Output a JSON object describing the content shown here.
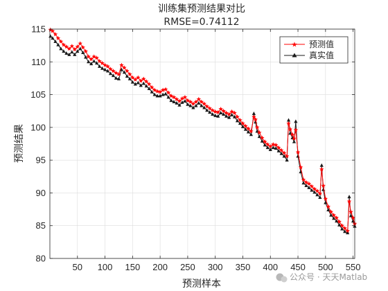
{
  "chart_data": {
    "type": "line",
    "title": "训练集预测结果对比",
    "subtitle": "RMSE=0.74112",
    "xlabel": "预测样本",
    "ylabel": "预测结果",
    "xlim": [
      0,
      553
    ],
    "ylim": [
      80,
      115
    ],
    "xticks": [
      50,
      100,
      150,
      200,
      250,
      300,
      350,
      400,
      450,
      500,
      550
    ],
    "yticks": [
      80,
      85,
      90,
      95,
      100,
      105,
      110,
      115
    ],
    "grid": true,
    "legend_position": "top-right",
    "series": [
      {
        "name": "预测值",
        "color": "#ff0000",
        "marker": "star",
        "x": [
          1,
          5,
          10,
          15,
          20,
          25,
          30,
          35,
          40,
          45,
          50,
          55,
          60,
          65,
          70,
          75,
          80,
          85,
          90,
          95,
          100,
          105,
          110,
          115,
          120,
          125,
          130,
          135,
          140,
          145,
          150,
          155,
          160,
          165,
          170,
          175,
          180,
          185,
          190,
          195,
          200,
          205,
          210,
          215,
          220,
          225,
          230,
          235,
          240,
          245,
          250,
          255,
          260,
          265,
          270,
          275,
          280,
          285,
          290,
          295,
          300,
          305,
          310,
          315,
          320,
          325,
          330,
          335,
          340,
          345,
          350,
          355,
          360,
          365,
          370,
          373,
          376,
          380,
          385,
          390,
          395,
          400,
          405,
          410,
          415,
          420,
          425,
          430,
          433,
          436,
          440,
          443,
          446,
          450,
          455,
          460,
          465,
          470,
          475,
          480,
          485,
          490,
          493,
          496,
          500,
          505,
          510,
          515,
          520,
          525,
          530,
          535,
          540,
          543,
          546,
          550,
          553
        ],
        "y": [
          114.9,
          114.7,
          114.2,
          113.6,
          113.1,
          112.6,
          112.3,
          112.0,
          112.4,
          111.9,
          112.3,
          112.8,
          112.2,
          111.6,
          110.8,
          110.4,
          110.8,
          110.6,
          110.1,
          109.8,
          109.5,
          109.3,
          108.9,
          108.6,
          108.3,
          108.1,
          109.5,
          109.1,
          108.6,
          108.1,
          107.6,
          107.3,
          107.6,
          107.1,
          107.4,
          107.0,
          106.6,
          106.1,
          105.7,
          105.5,
          105.4,
          105.7,
          105.8,
          105.3,
          104.8,
          104.6,
          104.3,
          104.0,
          104.4,
          104.6,
          104.1,
          103.9,
          103.6,
          103.9,
          104.3,
          103.9,
          103.6,
          103.2,
          102.9,
          102.6,
          102.4,
          102.3,
          102.8,
          102.5,
          102.2,
          102.0,
          102.4,
          102.2,
          101.6,
          101.1,
          100.6,
          100.2,
          99.8,
          99.4,
          101.6,
          101.2,
          100.0,
          99.2,
          98.4,
          97.8,
          97.4,
          97.1,
          97.4,
          97.3,
          96.9,
          96.5,
          96.1,
          95.6,
          100.6,
          99.7,
          98.9,
          98.3,
          99.6,
          96.2,
          93.9,
          92.0,
          91.6,
          91.4,
          91.0,
          90.6,
          90.3,
          89.9,
          93.6,
          91.1,
          89.1,
          87.9,
          87.1,
          86.6,
          86.2,
          85.6,
          85.0,
          84.6,
          84.2,
          88.7,
          87.1,
          86.2,
          85.3
        ]
      },
      {
        "name": "真实值",
        "color": "#1a1a1a",
        "marker": "triangle",
        "x": [
          1,
          5,
          10,
          15,
          20,
          25,
          30,
          35,
          40,
          45,
          50,
          55,
          60,
          65,
          70,
          75,
          80,
          85,
          90,
          95,
          100,
          105,
          110,
          115,
          120,
          125,
          130,
          135,
          140,
          145,
          150,
          155,
          160,
          165,
          170,
          175,
          180,
          185,
          190,
          195,
          200,
          205,
          210,
          215,
          220,
          225,
          230,
          235,
          240,
          245,
          250,
          255,
          260,
          265,
          270,
          275,
          280,
          285,
          290,
          295,
          300,
          305,
          310,
          315,
          320,
          325,
          330,
          335,
          340,
          345,
          350,
          355,
          360,
          365,
          370,
          373,
          376,
          380,
          385,
          390,
          395,
          400,
          405,
          410,
          415,
          420,
          425,
          430,
          433,
          436,
          440,
          443,
          446,
          450,
          455,
          460,
          465,
          470,
          475,
          480,
          485,
          490,
          493,
          496,
          500,
          505,
          510,
          515,
          520,
          525,
          530,
          535,
          540,
          543,
          546,
          550,
          553
        ],
        "y": [
          113.9,
          113.6,
          113.1,
          112.6,
          112.0,
          111.6,
          111.3,
          111.1,
          111.5,
          111.1,
          111.6,
          112.0,
          111.4,
          110.7,
          110.0,
          109.7,
          110.1,
          109.8,
          109.3,
          109.0,
          108.8,
          108.6,
          108.2,
          107.9,
          107.5,
          107.4,
          108.8,
          108.4,
          107.8,
          107.4,
          106.9,
          106.6,
          106.8,
          106.4,
          106.7,
          106.3,
          105.9,
          105.4,
          105.0,
          104.8,
          104.8,
          105.0,
          105.1,
          104.6,
          104.1,
          103.9,
          103.7,
          103.4,
          103.8,
          104.0,
          103.5,
          103.3,
          103.0,
          103.3,
          103.7,
          103.3,
          103.0,
          102.6,
          102.3,
          102.0,
          101.8,
          101.7,
          102.2,
          102.0,
          101.7,
          101.5,
          101.9,
          101.6,
          101.0,
          100.6,
          100.1,
          99.7,
          99.3,
          98.9,
          102.1,
          100.8,
          99.4,
          98.6,
          97.9,
          97.3,
          96.9,
          96.6,
          96.9,
          96.8,
          96.4,
          96.0,
          95.6,
          95.0,
          101.1,
          99.1,
          98.4,
          97.8,
          100.9,
          95.6,
          93.2,
          91.5,
          91.1,
          90.8,
          90.4,
          90.1,
          89.7,
          89.3,
          94.2,
          90.5,
          88.5,
          87.4,
          86.6,
          86.1,
          85.7,
          85.1,
          84.5,
          84.1,
          83.9,
          89.4,
          86.5,
          85.7,
          84.9
        ]
      }
    ]
  },
  "watermark": {
    "text": "公众号 · 天天Matlab",
    "icon": "wechat-icon"
  }
}
